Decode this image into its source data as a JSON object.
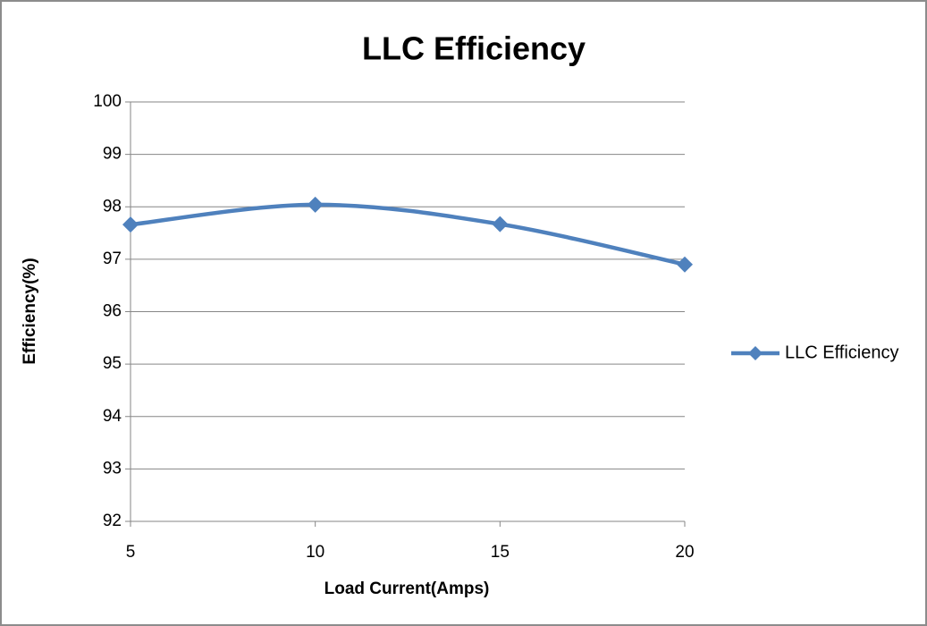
{
  "chart_data": {
    "type": "line",
    "title": "LLC Efficiency",
    "x_label": "Load Current(Amps)",
    "y_label": "Efficiency(%)",
    "x": [
      5,
      10,
      15,
      20
    ],
    "series": [
      {
        "name": "LLC Efficiency",
        "color": "#4f81bd",
        "values": [
          97.66,
          98.04,
          97.67,
          96.9
        ]
      }
    ],
    "xlim": [
      5,
      20
    ],
    "xticks": [
      5,
      10,
      15,
      20
    ],
    "ylim": [
      92,
      100
    ],
    "yticks": [
      92,
      93,
      94,
      95,
      96,
      97,
      98,
      99,
      100
    ],
    "grid": true,
    "legend": "right",
    "smooth": true
  }
}
